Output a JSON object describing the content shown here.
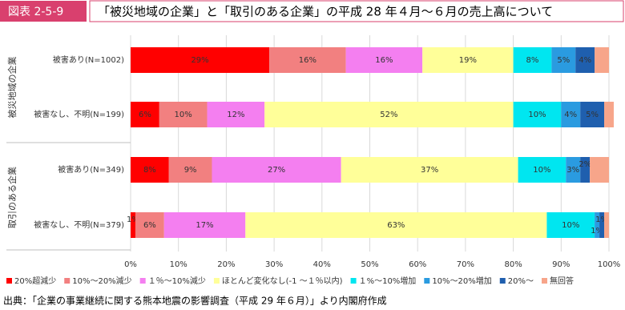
{
  "chart_data": {
    "type": "stacked-barh",
    "figure_label": "図表 2-5-9",
    "title": "「被災地域の企業」と「取引のある企業」の平成 28 年４月～６月の売上高について",
    "source": "出典：「企業の事業継続に関する熊本地震の影響調査（平成 29 年６月）」より内閣府作成",
    "groups": [
      {
        "name": "被災地域の企業",
        "rows": [
          0,
          1
        ]
      },
      {
        "name": "取引のある企業",
        "rows": [
          2,
          3
        ]
      }
    ],
    "categories": [
      "被害あり(N=1002)",
      "被害なし、不明(N=199)",
      "被害あり(N=349)",
      "被害なし、不明(N=379)"
    ],
    "series": [
      {
        "name": "20%超減少",
        "color": "#ff0000",
        "values": [
          29,
          6,
          8,
          1
        ],
        "value_labels": [
          "29%",
          "6%",
          "8%",
          "1%"
        ]
      },
      {
        "name": "10%～20%減少",
        "color": "#f28080",
        "values": [
          16,
          10,
          9,
          6
        ],
        "value_labels": [
          "16%",
          "10%",
          "9%",
          "6%"
        ]
      },
      {
        "name": "１％～10%減少",
        "color": "#f47ff0",
        "values": [
          16,
          12,
          27,
          17
        ],
        "value_labels": [
          "16%",
          "12%",
          "27%",
          "17%"
        ]
      },
      {
        "name": "ほとんど変化なし(-1 ～１％以内)",
        "color": "#ffff99",
        "values": [
          19,
          52,
          37,
          63
        ],
        "value_labels": [
          "19%",
          "52%",
          "37%",
          "63%"
        ]
      },
      {
        "name": "１%～10%増加",
        "color": "#00e6f0",
        "values": [
          8,
          10,
          10,
          10
        ],
        "value_labels": [
          "8%",
          "10%",
          "10%",
          "10%"
        ]
      },
      {
        "name": "10%～20%増加",
        "color": "#2a9be0",
        "values": [
          5,
          4,
          3,
          1
        ],
        "value_labels": [
          "5%",
          "4%",
          "3%",
          "1%"
        ]
      },
      {
        "name": "20%～",
        "color": "#1f5fae",
        "values": [
          4,
          5,
          2,
          1
        ],
        "value_labels": [
          "4%",
          "5%",
          "2%",
          "1%"
        ]
      },
      {
        "name": "無回答",
        "color": "#f7a58a",
        "values": [
          3,
          2,
          4,
          1
        ],
        "value_labels": [
          null,
          null,
          null,
          null
        ]
      }
    ],
    "xlim": [
      0,
      100
    ],
    "xticks": [
      {
        "value": 0,
        "label": "0%"
      },
      {
        "value": 10,
        "label": "10%"
      },
      {
        "value": 20,
        "label": "20%"
      },
      {
        "value": 30,
        "label": "30%"
      },
      {
        "value": 40,
        "label": "40%"
      },
      {
        "value": 50,
        "label": "50%"
      },
      {
        "value": 60,
        "label": "60%"
      },
      {
        "value": 70,
        "label": "70%"
      },
      {
        "value": 80,
        "label": "80%"
      },
      {
        "value": 90,
        "label": "90%"
      },
      {
        "value": 100,
        "label": "100%"
      }
    ],
    "grid": true,
    "legend": "bottom"
  }
}
